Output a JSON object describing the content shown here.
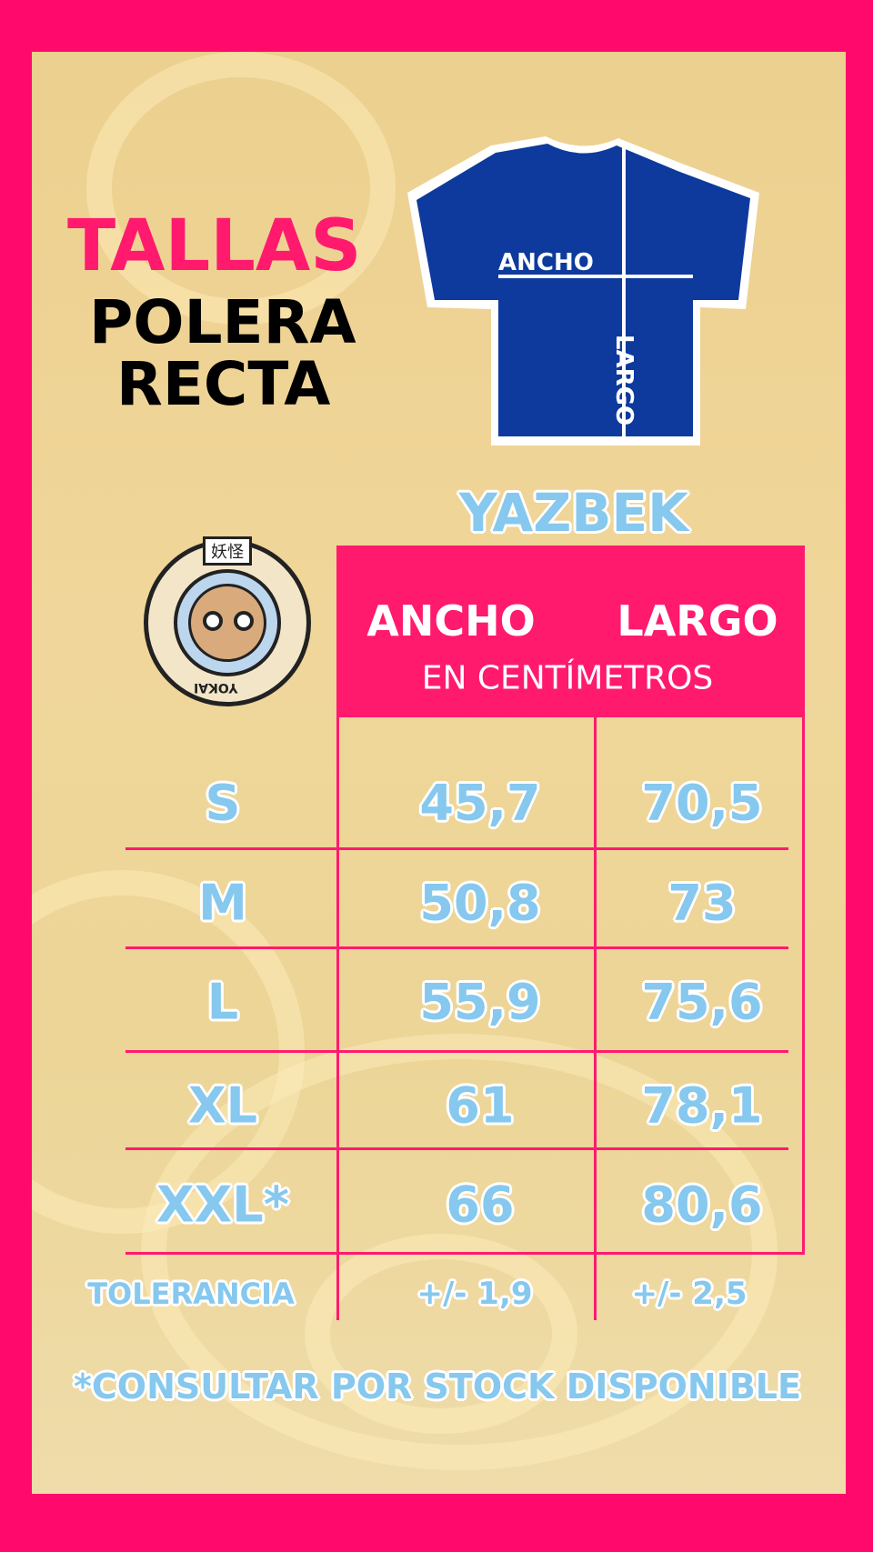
{
  "heading": {
    "line1": "TALLAS",
    "line2": "POLERA",
    "line3": "RECTA"
  },
  "shirt": {
    "width_label": "ANCHO",
    "length_label": "LARGO",
    "color": "#0d3a9c"
  },
  "brand": "YAZBEK",
  "logo": {
    "kanji": "妖怪",
    "text": "YOKAI"
  },
  "table": {
    "columns": [
      "ANCHO",
      "LARGO"
    ],
    "unit": "EN CENTÍMETROS",
    "rows": [
      {
        "size": "S",
        "ancho": "45,7",
        "largo": "70,5"
      },
      {
        "size": "M",
        "ancho": "50,8",
        "largo": "73"
      },
      {
        "size": "L",
        "ancho": "55,9",
        "largo": "75,6"
      },
      {
        "size": "XL",
        "ancho": "61",
        "largo": "78,1"
      },
      {
        "size": "XXL*",
        "ancho": "66",
        "largo": "80,6"
      }
    ],
    "tolerance": {
      "label": "TOLERANCIA",
      "ancho": "+/- 1,9",
      "largo": "+/- 2,5"
    }
  },
  "footnote": "*CONSULTAR POR STOCK DISPONIBLE",
  "colors": {
    "pink": "#ff0a6c",
    "cream": "#ecd08f",
    "light_blue": "#86c8ee"
  }
}
